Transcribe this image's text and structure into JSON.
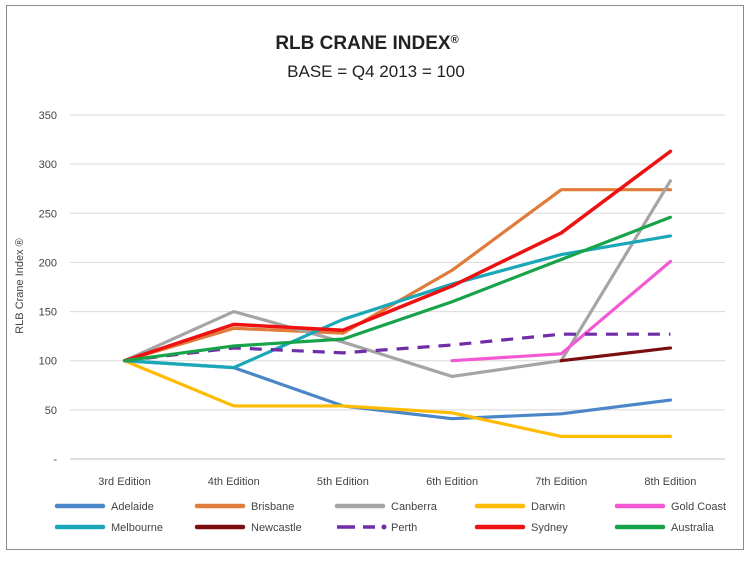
{
  "chart_data": {
    "type": "line",
    "title": "RLB CRANE INDEX",
    "title_mark": "®",
    "subtitle": "BASE = Q4 2013 = 100",
    "ylabel": "RLB Crane Index ®",
    "xlabel": "",
    "categories": [
      "3rd Edition",
      "4th Edition",
      "5th Edition",
      "6th Edition",
      "7th Edition",
      "8th Edition"
    ],
    "ylim": [
      0,
      350
    ],
    "yticks": [
      0,
      50,
      100,
      150,
      200,
      250,
      300,
      350
    ],
    "ytick_labels": [
      "-",
      "50",
      "100",
      "150",
      "200",
      "250",
      "300",
      "350"
    ],
    "grid": true,
    "legend_position": "bottom",
    "series": [
      {
        "name": "Adelaide",
        "color": "#4a86c8",
        "dashed": false,
        "values": [
          100,
          93,
          54,
          41,
          46,
          60
        ]
      },
      {
        "name": "Brisbane",
        "color": "#e07b39",
        "dashed": false,
        "values": [
          100,
          133,
          128,
          192,
          274,
          274
        ]
      },
      {
        "name": "Canberra",
        "color": "#a5a5a5",
        "dashed": false,
        "values": [
          100,
          150,
          119,
          84,
          100,
          283
        ]
      },
      {
        "name": "Darwin",
        "color": "#ffbb00",
        "dashed": false,
        "values": [
          100,
          54,
          54,
          47,
          23,
          23
        ]
      },
      {
        "name": "Gold Coast",
        "color": "#f458d2",
        "dashed": false,
        "values": [
          null,
          null,
          null,
          100,
          107,
          201
        ]
      },
      {
        "name": "Melbourne",
        "color": "#1aa7b8",
        "dashed": false,
        "values": [
          100,
          93,
          142,
          178,
          208,
          227
        ]
      },
      {
        "name": "Newcastle",
        "color": "#7b0f0f",
        "dashed": false,
        "values": [
          null,
          null,
          null,
          null,
          100,
          113
        ]
      },
      {
        "name": "Perth",
        "color": "#6f2da8",
        "dashed": true,
        "values": [
          100,
          113,
          108,
          116,
          127,
          127
        ]
      },
      {
        "name": "Sydney",
        "color": "#ee1111",
        "dashed": false,
        "values": [
          100,
          137,
          131,
          176,
          230,
          313
        ]
      },
      {
        "name": "Australia",
        "color": "#16a34a",
        "dashed": false,
        "values": [
          100,
          115,
          122,
          160,
          203,
          246
        ]
      }
    ]
  }
}
